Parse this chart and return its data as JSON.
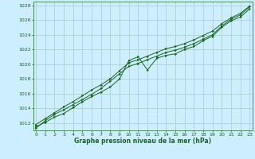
{
  "title": "Graphe pression niveau de la mer (hPa)",
  "bg_color": "#cceeff",
  "grid_color": "#aacccc",
  "line_color": "#1a6620",
  "marker_color": "#1a6620",
  "xlim": [
    -0.3,
    23.3
  ],
  "ylim": [
    1011.0,
    1028.5
  ],
  "yticks": [
    1012,
    1014,
    1016,
    1018,
    1020,
    1022,
    1024,
    1026,
    1028
  ],
  "xticks": [
    0,
    1,
    2,
    3,
    4,
    5,
    6,
    7,
    8,
    9,
    10,
    11,
    12,
    13,
    14,
    15,
    16,
    17,
    18,
    19,
    20,
    21,
    22,
    23
  ],
  "series": [
    [
      1011.5,
      1012.1,
      1012.8,
      1013.3,
      1014.1,
      1014.9,
      1015.6,
      1016.2,
      1016.9,
      1018.0,
      1020.5,
      1021.0,
      1019.2,
      1020.8,
      1021.2,
      1021.4,
      1022.0,
      1022.4,
      1023.2,
      1023.8,
      1025.0,
      1025.9,
      1026.4,
      1027.5
    ],
    [
      1011.3,
      1012.3,
      1013.2,
      1013.8,
      1014.5,
      1015.2,
      1015.9,
      1016.7,
      1017.7,
      1018.7,
      1019.7,
      1020.1,
      1020.6,
      1021.1,
      1021.6,
      1021.9,
      1022.3,
      1022.8,
      1023.4,
      1024.0,
      1025.2,
      1026.1,
      1026.7,
      1027.8
    ],
    [
      1011.8,
      1012.6,
      1013.4,
      1014.2,
      1014.9,
      1015.7,
      1016.5,
      1017.2,
      1018.0,
      1019.1,
      1020.2,
      1020.6,
      1021.1,
      1021.6,
      1022.1,
      1022.4,
      1022.8,
      1023.3,
      1023.9,
      1024.5,
      1025.5,
      1026.3,
      1026.9,
      1027.9
    ]
  ]
}
